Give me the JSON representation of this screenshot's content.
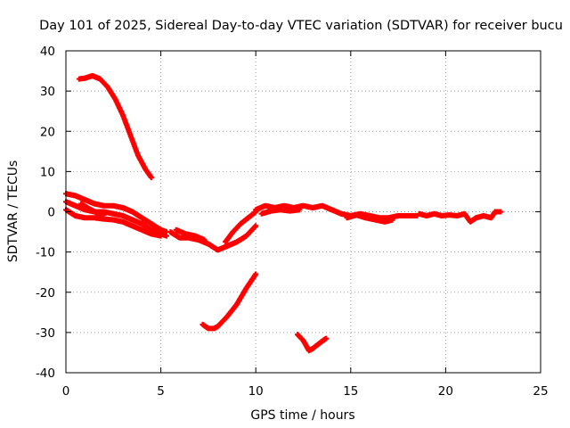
{
  "chart_data": {
    "type": "scatter",
    "title": "Day 101 of 2025, Sidereal Day-to-day VTEC variation (SDTVAR) for receiver bucu",
    "xlabel": "GPS time / hours",
    "ylabel": "SDTVAR / TECUs",
    "xlim": [
      0,
      25
    ],
    "ylim": [
      -40,
      40
    ],
    "xticks": [
      0,
      5,
      10,
      15,
      20,
      25
    ],
    "yticks": [
      -40,
      -30,
      -20,
      -10,
      0,
      10,
      20,
      30,
      40
    ],
    "grid": true,
    "marker": "+",
    "series_color": "#ff0000",
    "segments": [
      {
        "name": "upper arc",
        "points": [
          [
            0.7,
            33
          ],
          [
            1.0,
            33.2
          ],
          [
            1.4,
            33.8
          ],
          [
            1.8,
            33
          ],
          [
            2.2,
            31
          ],
          [
            2.6,
            28
          ],
          [
            3.0,
            24
          ],
          [
            3.4,
            19
          ],
          [
            3.8,
            14
          ],
          [
            4.2,
            10.5
          ],
          [
            4.5,
            8.5
          ]
        ]
      },
      {
        "name": "band top",
        "points": [
          [
            0,
            4.5
          ],
          [
            0.5,
            4
          ],
          [
            1,
            3
          ],
          [
            1.5,
            2
          ],
          [
            2,
            1.5
          ],
          [
            2.5,
            1.5
          ],
          [
            3,
            1
          ],
          [
            3.5,
            0
          ],
          [
            4,
            -1.5
          ],
          [
            4.5,
            -3
          ],
          [
            5,
            -4.5
          ],
          [
            5.3,
            -5
          ]
        ]
      },
      {
        "name": "band middle",
        "points": [
          [
            0,
            2.5
          ],
          [
            0.5,
            1.5
          ],
          [
            1,
            0.5
          ],
          [
            1.5,
            0
          ],
          [
            2,
            0
          ],
          [
            2.5,
            -0.5
          ],
          [
            3,
            -1
          ],
          [
            3.5,
            -2
          ],
          [
            4,
            -3
          ],
          [
            4.5,
            -4.5
          ],
          [
            5,
            -5.5
          ],
          [
            5.3,
            -6
          ]
        ]
      },
      {
        "name": "band lower",
        "points": [
          [
            0,
            0.5
          ],
          [
            0.5,
            -1
          ],
          [
            1,
            -1.5
          ],
          [
            1.5,
            -1.5
          ],
          [
            2,
            -1.8
          ],
          [
            2.5,
            -2
          ],
          [
            3,
            -2.5
          ],
          [
            3.5,
            -3.5
          ],
          [
            4,
            -4.5
          ],
          [
            4.5,
            -5.5
          ],
          [
            5,
            -6
          ]
        ]
      },
      {
        "name": "inner dip",
        "points": [
          [
            0.8,
            2
          ],
          [
            1.2,
            0.8
          ],
          [
            1.6,
            -0.2
          ],
          [
            2.0,
            -0.8
          ]
        ]
      },
      {
        "name": "central trough",
        "points": [
          [
            5.5,
            -5
          ],
          [
            6,
            -6.5
          ],
          [
            6.5,
            -6.5
          ],
          [
            7,
            -7
          ],
          [
            7.5,
            -8
          ],
          [
            8,
            -9.5
          ],
          [
            8.5,
            -8.5
          ],
          [
            9,
            -7.5
          ],
          [
            9.5,
            -6
          ],
          [
            10,
            -3.5
          ]
        ]
      },
      {
        "name": "trough upper",
        "points": [
          [
            5.8,
            -4.5
          ],
          [
            6.3,
            -5.5
          ],
          [
            6.8,
            -6
          ],
          [
            7.3,
            -7
          ]
        ]
      },
      {
        "name": "rise to ten",
        "points": [
          [
            8.4,
            -7.5
          ],
          [
            8.8,
            -5
          ],
          [
            9.2,
            -3
          ],
          [
            9.6,
            -1.5
          ],
          [
            10,
            0
          ]
        ]
      },
      {
        "name": "low arc",
        "points": [
          [
            7.2,
            -28
          ],
          [
            7.5,
            -29
          ],
          [
            7.8,
            -29
          ],
          [
            8.0,
            -28.5
          ],
          [
            8.5,
            -26
          ],
          [
            9,
            -23
          ],
          [
            9.5,
            -19
          ],
          [
            10,
            -15.5
          ]
        ]
      },
      {
        "name": "small dip",
        "points": [
          [
            12.2,
            -30.5
          ],
          [
            12.5,
            -32
          ],
          [
            12.8,
            -34.5
          ],
          [
            13.0,
            -34
          ],
          [
            13.4,
            -32.5
          ],
          [
            13.7,
            -31.5
          ]
        ]
      },
      {
        "name": "recovery",
        "points": [
          [
            10,
            0.5
          ],
          [
            10.5,
            1.5
          ],
          [
            11,
            1
          ],
          [
            11.5,
            1.5
          ],
          [
            12,
            1
          ],
          [
            12.5,
            1.5
          ],
          [
            13,
            1
          ],
          [
            13.5,
            1.5
          ],
          [
            14,
            0.5
          ]
        ]
      },
      {
        "name": "recovery lower",
        "points": [
          [
            10.3,
            -0.5
          ],
          [
            10.8,
            0.2
          ],
          [
            11.3,
            0.5
          ],
          [
            11.8,
            0.2
          ],
          [
            12.3,
            0.5
          ]
        ]
      },
      {
        "name": "tail band",
        "points": [
          [
            14,
            0.5
          ],
          [
            14.5,
            -0.5
          ],
          [
            15,
            -1
          ],
          [
            15.5,
            -0.5
          ],
          [
            16,
            -1
          ],
          [
            16.5,
            -1.5
          ],
          [
            17,
            -1.5
          ],
          [
            17.5,
            -1
          ],
          [
            18,
            -1
          ],
          [
            18.5,
            -1
          ]
        ]
      },
      {
        "name": "tail lower",
        "points": [
          [
            14.8,
            -1.5
          ],
          [
            15.3,
            -0.8
          ],
          [
            15.8,
            -1.5
          ],
          [
            16.3,
            -2
          ],
          [
            16.8,
            -2.5
          ],
          [
            17.2,
            -2
          ]
        ]
      },
      {
        "name": "sparse right",
        "points": [
          [
            18.6,
            -0.5
          ],
          [
            19,
            -1
          ],
          [
            19.4,
            -0.5
          ],
          [
            19.8,
            -1
          ],
          [
            20.2,
            -0.8
          ],
          [
            20.6,
            -1
          ],
          [
            21,
            -0.5
          ],
          [
            21.3,
            -2.5
          ],
          [
            21.6,
            -1.5
          ],
          [
            22,
            -1
          ],
          [
            22.4,
            -1.5
          ],
          [
            22.6,
            0
          ],
          [
            22.9,
            0
          ]
        ]
      }
    ]
  }
}
